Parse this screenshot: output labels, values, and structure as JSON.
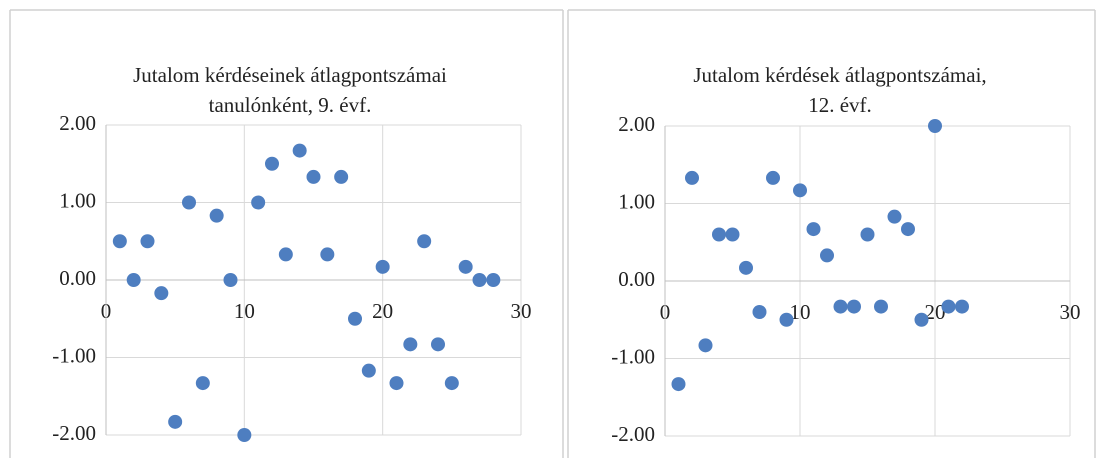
{
  "chart_data": [
    {
      "type": "scatter",
      "title": [
        "Jutalom kérdéseinek átlagpontszámai",
        "tanulónként, 9. évf."
      ],
      "color": "#4e7ec0",
      "x": [
        1,
        2,
        3,
        4,
        5,
        6,
        7,
        8,
        9,
        10,
        11,
        12,
        13,
        14,
        15,
        16,
        17,
        18,
        19,
        20,
        21,
        22,
        23,
        24,
        25,
        26,
        27,
        28
      ],
      "values": [
        0.5,
        0,
        0.5,
        -0.17,
        -1.83,
        1,
        -1.33,
        0.83,
        0,
        -2,
        1,
        1.5,
        0.33,
        1.67,
        1.33,
        0.33,
        1.33,
        -0.5,
        -1.17,
        0.17,
        -1.33,
        -0.83,
        0.5,
        -0.83,
        -1.33,
        0.17,
        0,
        0
      ],
      "xlim": [
        0,
        30
      ],
      "xticks": [
        0,
        10,
        20,
        30
      ],
      "ylim": [
        -2,
        2
      ],
      "yticks": [
        {
          "value": -2,
          "label": "-2.00"
        },
        {
          "value": -1,
          "label": "-1.00"
        },
        {
          "value": 0,
          "label": "0.00"
        },
        {
          "value": 1,
          "label": "1.00"
        },
        {
          "value": 2,
          "label": "2.00"
        }
      ],
      "grid": true
    },
    {
      "type": "scatter",
      "title": [
        "Jutalom kérdések átlagpontszámai,",
        "12. évf."
      ],
      "color": "#4e7ec0",
      "x": [
        1,
        2,
        3,
        4,
        5,
        6,
        7,
        8,
        9,
        10,
        11,
        12,
        13,
        14,
        15,
        16,
        17,
        18,
        19,
        20,
        21,
        22
      ],
      "values": [
        -1.33,
        1.33,
        -0.83,
        0.6,
        0.6,
        0.17,
        -0.4,
        1.33,
        -0.5,
        1.17,
        0.67,
        0.33,
        -0.33,
        -0.33,
        0.6,
        -0.33,
        0.83,
        0.67,
        -0.5,
        2,
        -0.33,
        -0.33
      ],
      "xlim": [
        0,
        30
      ],
      "xticks": [
        0,
        10,
        20,
        30
      ],
      "ylim": [
        -2,
        2
      ],
      "yticks": [
        {
          "value": -2,
          "label": "-2.00"
        },
        {
          "value": -1,
          "label": "-1.00"
        },
        {
          "value": 0,
          "label": "0.00"
        },
        {
          "value": 1,
          "label": "1.00"
        },
        {
          "value": 2,
          "label": "2.00"
        }
      ],
      "grid": true
    }
  ]
}
